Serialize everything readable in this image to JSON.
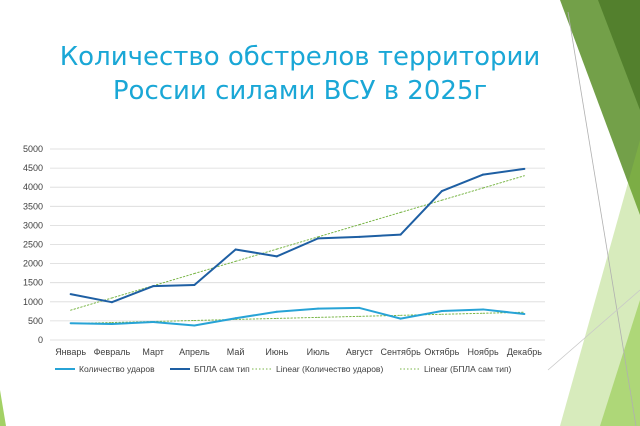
{
  "slide": {
    "title_line1": "Количество обстрелов территории",
    "title_line2": "России силами ВСУ в 2025г"
  },
  "colors": {
    "title": "#1aa7d6",
    "series1": "#27a3d6",
    "series2": "#1e5fa3",
    "trend": "#7ab648",
    "deco_green": "#8cc63f",
    "deco_dark": "#5b8f29"
  },
  "chart_data": {
    "type": "line",
    "categories": [
      "Январь",
      "Февраль",
      "Март",
      "Апрель",
      "Май",
      "Июнь",
      "Июль",
      "Август",
      "Сентябрь",
      "Октябрь",
      "Ноябрь",
      "Декабрь"
    ],
    "series": [
      {
        "name": "Количество ударов",
        "values": [
          440,
          420,
          470,
          380,
          570,
          740,
          820,
          840,
          560,
          760,
          800,
          680
        ]
      },
      {
        "name": "БПЛА сам тип",
        "values": [
          1200,
          990,
          1410,
          1440,
          2370,
          2190,
          2660,
          2700,
          2760,
          3900,
          4330,
          4480
        ]
      },
      {
        "name": "Linear (Количество ударов)",
        "values": [
          430,
          457,
          484,
          511,
          538,
          565,
          592,
          619,
          646,
          673,
          700,
          727
        ]
      },
      {
        "name": "Linear (БПЛА сам тип)",
        "values": [
          780,
          1100,
          1420,
          1740,
          2060,
          2380,
          2700,
          3020,
          3340,
          3660,
          3980,
          4300
        ]
      }
    ],
    "ylim": [
      0,
      5000
    ],
    "yticks": [
      "0",
      "500",
      "1000",
      "1500",
      "2000",
      "2500",
      "3000",
      "3500",
      "4000",
      "4500",
      "5000"
    ],
    "grid": true,
    "legend_position": "bottom"
  }
}
